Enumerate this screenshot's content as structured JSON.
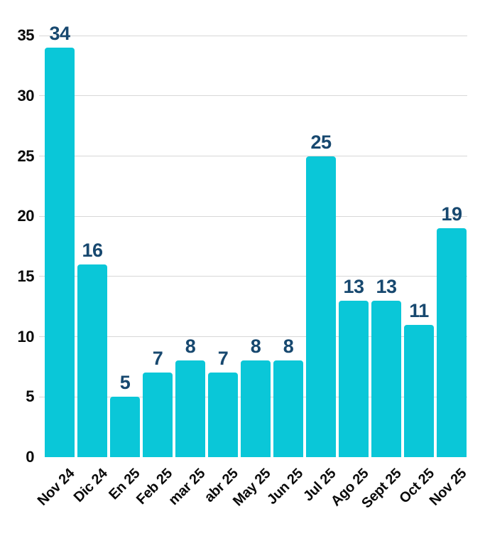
{
  "chart_data": {
    "type": "bar",
    "title": "",
    "xlabel": "",
    "ylabel": "",
    "categories": [
      "Nov 24",
      "Dic 24",
      "En 25",
      "Feb 25",
      "mar 25",
      "abr 25",
      "May 25",
      "Jun 25",
      "Jul 25",
      "Ago 25",
      "Sept 25",
      "Oct 25",
      "Nov 25"
    ],
    "values": [
      34,
      16,
      5,
      7,
      8,
      7,
      8,
      8,
      25,
      13,
      13,
      11,
      19
    ],
    "ylim": [
      0,
      35
    ],
    "yticks": [
      0,
      5,
      10,
      15,
      20,
      25,
      30,
      35
    ],
    "grid": true,
    "legend": null,
    "colors": {
      "bar": "#0AC7D8",
      "value_label": "#17486F",
      "tick_label": "#0A0A0A",
      "gridline": "#D7D7D7",
      "background": "#FFFFFF"
    }
  }
}
